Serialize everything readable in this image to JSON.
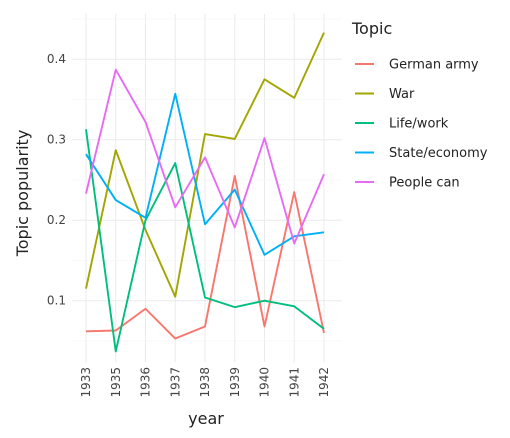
{
  "chart_data": {
    "type": "line",
    "xlabel": "year",
    "ylabel": "Topic popularity",
    "legend_title": "Topic",
    "legend_position": "right",
    "grid": true,
    "categories": [
      "1933",
      "1935",
      "1936",
      "1937",
      "1938",
      "1939",
      "1940",
      "1941",
      "1942"
    ],
    "ylim": [
      0.02,
      0.45
    ],
    "yticks": [
      0.1,
      0.2,
      0.3,
      0.4
    ],
    "ytick_labels": [
      "0.1",
      "0.2",
      "0.3",
      "0.4"
    ],
    "series": [
      {
        "name": "German army",
        "color": "#F8766D",
        "values": [
          0.062,
          0.063,
          0.09,
          0.053,
          0.068,
          0.255,
          0.068,
          0.235,
          0.06
        ]
      },
      {
        "name": "War",
        "color": "#A3A500",
        "values": [
          0.115,
          0.287,
          0.188,
          0.105,
          0.307,
          0.301,
          0.375,
          0.352,
          0.433
        ]
      },
      {
        "name": "Life/work",
        "color": "#00BF7D",
        "values": [
          0.313,
          0.037,
          0.2,
          0.271,
          0.104,
          0.092,
          0.1,
          0.093,
          0.065
        ]
      },
      {
        "name": "State/economy",
        "color": "#00B0F6",
        "values": [
          0.282,
          0.225,
          0.203,
          0.357,
          0.195,
          0.238,
          0.157,
          0.18,
          0.185
        ]
      },
      {
        "name": "People can",
        "color": "#E76BF3",
        "values": [
          0.233,
          0.387,
          0.322,
          0.216,
          0.278,
          0.191,
          0.302,
          0.171,
          0.257
        ]
      }
    ]
  }
}
